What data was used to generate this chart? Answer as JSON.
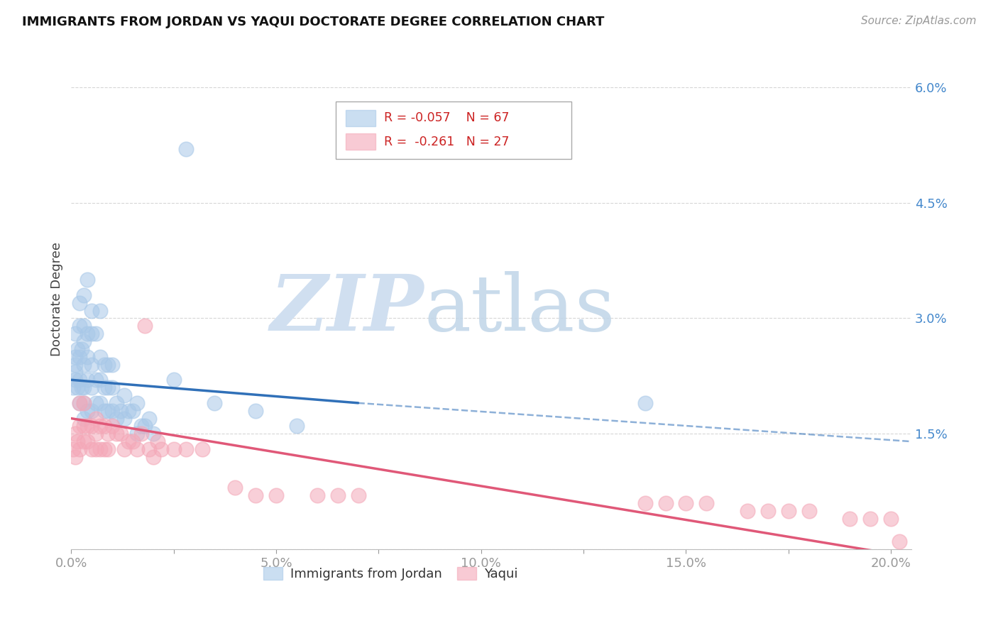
{
  "title": "IMMIGRANTS FROM JORDAN VS YAQUI DOCTORATE DEGREE CORRELATION CHART",
  "source": "Source: ZipAtlas.com",
  "ylabel": "Doctorate Degree",
  "jordan_color": "#a8c8e8",
  "yaqui_color": "#f4a8b8",
  "jordan_line_color": "#3070b8",
  "yaqui_line_color": "#e05878",
  "background_color": "#ffffff",
  "xlim": [
    0.0,
    0.205
  ],
  "ylim": [
    0.0,
    0.065
  ],
  "figsize": [
    14.06,
    8.92
  ],
  "jordan_x": [
    0.0005,
    0.001,
    0.001,
    0.001,
    0.001,
    0.001,
    0.0015,
    0.0015,
    0.002,
    0.002,
    0.002,
    0.002,
    0.002,
    0.0025,
    0.0025,
    0.003,
    0.003,
    0.003,
    0.003,
    0.003,
    0.003,
    0.003,
    0.004,
    0.004,
    0.004,
    0.004,
    0.004,
    0.005,
    0.005,
    0.005,
    0.005,
    0.005,
    0.006,
    0.006,
    0.006,
    0.007,
    0.007,
    0.007,
    0.007,
    0.008,
    0.008,
    0.008,
    0.009,
    0.009,
    0.009,
    0.01,
    0.01,
    0.01,
    0.011,
    0.011,
    0.012,
    0.013,
    0.013,
    0.014,
    0.015,
    0.016,
    0.016,
    0.017,
    0.018,
    0.019,
    0.02,
    0.025,
    0.028,
    0.035,
    0.045,
    0.055,
    0.14
  ],
  "jordan_y": [
    0.021,
    0.022,
    0.023,
    0.024,
    0.025,
    0.028,
    0.021,
    0.026,
    0.019,
    0.022,
    0.025,
    0.029,
    0.032,
    0.021,
    0.026,
    0.017,
    0.019,
    0.021,
    0.024,
    0.027,
    0.029,
    0.033,
    0.018,
    0.022,
    0.025,
    0.028,
    0.035,
    0.018,
    0.021,
    0.024,
    0.028,
    0.031,
    0.019,
    0.022,
    0.028,
    0.019,
    0.022,
    0.025,
    0.031,
    0.018,
    0.021,
    0.024,
    0.018,
    0.021,
    0.024,
    0.018,
    0.021,
    0.024,
    0.017,
    0.019,
    0.018,
    0.017,
    0.02,
    0.018,
    0.018,
    0.015,
    0.019,
    0.016,
    0.016,
    0.017,
    0.015,
    0.022,
    0.052,
    0.019,
    0.018,
    0.016,
    0.019
  ],
  "yaqui_x": [
    0.0005,
    0.001,
    0.001,
    0.0015,
    0.002,
    0.002,
    0.002,
    0.003,
    0.003,
    0.003,
    0.004,
    0.004,
    0.005,
    0.005,
    0.006,
    0.006,
    0.006,
    0.007,
    0.007,
    0.008,
    0.008,
    0.009,
    0.009,
    0.01,
    0.011,
    0.012,
    0.013,
    0.014,
    0.015,
    0.016,
    0.017,
    0.018,
    0.019,
    0.02,
    0.021,
    0.022,
    0.025,
    0.028,
    0.032,
    0.04,
    0.045,
    0.05,
    0.06,
    0.065,
    0.07,
    0.14,
    0.145,
    0.15,
    0.155,
    0.165,
    0.17,
    0.175,
    0.18,
    0.19,
    0.195,
    0.2,
    0.202
  ],
  "yaqui_y": [
    0.013,
    0.012,
    0.015,
    0.014,
    0.013,
    0.016,
    0.019,
    0.014,
    0.016,
    0.019,
    0.014,
    0.016,
    0.013,
    0.016,
    0.013,
    0.015,
    0.017,
    0.013,
    0.016,
    0.013,
    0.016,
    0.013,
    0.015,
    0.016,
    0.015,
    0.015,
    0.013,
    0.014,
    0.014,
    0.013,
    0.015,
    0.029,
    0.013,
    0.012,
    0.014,
    0.013,
    0.013,
    0.013,
    0.013,
    0.008,
    0.007,
    0.007,
    0.007,
    0.007,
    0.007,
    0.006,
    0.006,
    0.006,
    0.006,
    0.005,
    0.005,
    0.005,
    0.005,
    0.004,
    0.004,
    0.004,
    0.001
  ],
  "jordan_line_x0": 0.0,
  "jordan_line_x_solid_end": 0.07,
  "jordan_line_x_dash_end": 0.205,
  "jordan_line_y0": 0.022,
  "jordan_line_y_solid_end": 0.019,
  "jordan_line_y_dash_end": 0.014,
  "yaqui_line_x0": 0.0,
  "yaqui_line_x_end": 0.205,
  "yaqui_line_y0": 0.017,
  "yaqui_line_y_end": -0.001
}
